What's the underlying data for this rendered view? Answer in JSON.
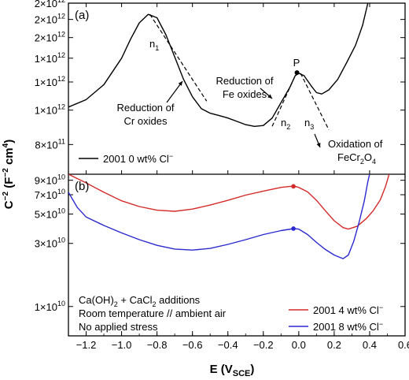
{
  "chart_data": [
    {
      "panel": "(a)",
      "type": "line",
      "xlabel": "E (V",
      "xlabel_sub": "SCE",
      "xlabel_close": ")",
      "ylabel_parts": [
        "C",
        "−2",
        " (F",
        "−2",
        " cm",
        "4",
        ")"
      ],
      "x_ticks": [
        "−1.2",
        "−1.0",
        "−0.8",
        "−0.6",
        "−0.4",
        "−0.2",
        "0.0",
        "0.2",
        "0.4",
        "0.6"
      ],
      "xlim": [
        -1.3,
        0.6
      ],
      "y_scale": "log",
      "ylim": [
        660000000000.0,
        2000000000000.0
      ],
      "y_ticks": [
        {
          "value": 800000000000.0,
          "mant": "8×10",
          "exp": "11"
        },
        {
          "value": 1000000000000.0,
          "mant": "1×10",
          "exp": "12"
        },
        {
          "value": 1200000000000.0,
          "mant": "1×10",
          "exp": "12"
        },
        {
          "value": 1400000000000.0,
          "mant": "1×10",
          "exp": "12"
        },
        {
          "value": 1600000000000.0,
          "mant": "2×10",
          "exp": "12"
        },
        {
          "value": 1800000000000.0,
          "mant": "2×10",
          "exp": "12"
        },
        {
          "value": 2000000000000.0,
          "mant": "2×10",
          "exp": "12"
        }
      ],
      "series": [
        {
          "name": "2001 0 wt% Cl",
          "name_sup": "−",
          "color": "#000000",
          "points": [
            [
              -1.3,
              1020000000000.0
            ],
            [
              -1.2,
              1070000000000.0
            ],
            [
              -1.1,
              1180000000000.0
            ],
            [
              -1.0,
              1400000000000.0
            ],
            [
              -0.95,
              1580000000000.0
            ],
            [
              -0.9,
              1760000000000.0
            ],
            [
              -0.85,
              1860000000000.0
            ],
            [
              -0.8,
              1820000000000.0
            ],
            [
              -0.75,
              1630000000000.0
            ],
            [
              -0.7,
              1410000000000.0
            ],
            [
              -0.65,
              1220000000000.0
            ],
            [
              -0.6,
              1090000000000.0
            ],
            [
              -0.55,
              1010000000000.0
            ],
            [
              -0.5,
              980000000000.0
            ],
            [
              -0.45,
              965000000000.0
            ],
            [
              -0.4,
              950000000000.0
            ],
            [
              -0.35,
              930000000000.0
            ],
            [
              -0.3,
              910000000000.0
            ],
            [
              -0.25,
              900000000000.0
            ],
            [
              -0.2,
              905000000000.0
            ],
            [
              -0.15,
              950000000000.0
            ],
            [
              -0.1,
              1050000000000.0
            ],
            [
              -0.05,
              1160000000000.0
            ],
            [
              -0.02,
              1250000000000.0
            ],
            [
              0.0,
              1270000000000.0
            ],
            [
              0.03,
              1250000000000.0
            ],
            [
              0.07,
              1170000000000.0
            ],
            [
              0.1,
              1120000000000.0
            ],
            [
              0.13,
              1110000000000.0
            ],
            [
              0.17,
              1140000000000.0
            ],
            [
              0.22,
              1220000000000.0
            ],
            [
              0.27,
              1360000000000.0
            ],
            [
              0.32,
              1520000000000.0
            ],
            [
              0.36,
              1730000000000.0
            ],
            [
              0.39,
              2000000000000.0
            ]
          ]
        }
      ],
      "tangents": [
        {
          "label": "n",
          "sub": "1",
          "x1": -0.84,
          "y1": 1860000000000.0,
          "x2": -0.52,
          "y2": 1060000000000.0
        },
        {
          "label": "n",
          "sub": "2",
          "x1": -0.15,
          "y1": 900000000000.0,
          "x2": -0.02,
          "y2": 1250000000000.0
        },
        {
          "label": "n",
          "sub": "3",
          "x1": 0.01,
          "y1": 1270000000000.0,
          "x2": 0.17,
          "y2": 880000000000.0
        }
      ],
      "marker": {
        "label": "P",
        "x": -0.01,
        "y": 1275000000000.0
      },
      "annotations": [
        {
          "lines": [
            "Reduction of",
            "Cr oxides"
          ]
        },
        {
          "lines": [
            "Reduction of",
            "Fe oxides"
          ]
        },
        {
          "lines": [
            "Oxidation of"
          ],
          "formula": [
            "FeCr",
            "2",
            "O",
            "4"
          ]
        }
      ]
    },
    {
      "panel": "(b)",
      "type": "line",
      "y_scale": "log",
      "ylim": [
        6000000000.0,
        100000000000.0
      ],
      "y_ticks": [
        {
          "value": 10000000000.0,
          "mant": "1×10",
          "exp": "10"
        },
        {
          "value": 30000000000.0,
          "mant": "3×10",
          "exp": "10"
        },
        {
          "value": 50000000000.0,
          "mant": "5×10",
          "exp": "10"
        },
        {
          "value": 70000000000.0,
          "mant": "7×10",
          "exp": "10"
        },
        {
          "value": 90000000000.0,
          "mant": "9×10",
          "exp": "10"
        }
      ],
      "series": [
        {
          "name": "2001 4 wt% Cl",
          "name_sup": "−",
          "color": "#d42a2a",
          "points": [
            [
              -1.3,
              100000000000.0
            ],
            [
              -1.2,
              86000000000.0
            ],
            [
              -1.1,
              73000000000.0
            ],
            [
              -1.0,
              63000000000.0
            ],
            [
              -0.9,
              57000000000.0
            ],
            [
              -0.8,
              53500000000.0
            ],
            [
              -0.7,
              52500000000.0
            ],
            [
              -0.6,
              54500000000.0
            ],
            [
              -0.5,
              58500000000.0
            ],
            [
              -0.4,
              63500000000.0
            ],
            [
              -0.3,
              69500000000.0
            ],
            [
              -0.2,
              74500000000.0
            ],
            [
              -0.1,
              79500000000.0
            ],
            [
              -0.05,
              81000000000.0
            ],
            [
              -0.02,
              81000000000.0
            ],
            [
              0.0,
              79500000000.0
            ],
            [
              0.05,
              73500000000.0
            ],
            [
              0.1,
              63500000000.0
            ],
            [
              0.15,
              53000000000.0
            ],
            [
              0.2,
              44500000000.0
            ],
            [
              0.25,
              39500000000.0
            ],
            [
              0.28,
              38500000000.0
            ],
            [
              0.33,
              40500000000.0
            ],
            [
              0.38,
              46000000000.0
            ],
            [
              0.42,
              53000000000.0
            ],
            [
              0.46,
              64000000000.0
            ],
            [
              0.49,
              81000000000.0
            ],
            [
              0.51,
              100000000000.0
            ]
          ]
        },
        {
          "name": "2001 8 wt% Cl",
          "name_sup": "−",
          "color": "#2a2ad0",
          "points": [
            [
              -1.3,
              73000000000.0
            ],
            [
              -1.25,
              56000000000.0
            ],
            [
              -1.2,
              47500000000.0
            ],
            [
              -1.1,
              41000000000.0
            ],
            [
              -1.0,
              36000000000.0
            ],
            [
              -0.9,
              32000000000.0
            ],
            [
              -0.8,
              29000000000.0
            ],
            [
              -0.7,
              27200000000.0
            ],
            [
              -0.6,
              26700000000.0
            ],
            [
              -0.5,
              27500000000.0
            ],
            [
              -0.4,
              29500000000.0
            ],
            [
              -0.3,
              32000000000.0
            ],
            [
              -0.2,
              35000000000.0
            ],
            [
              -0.1,
              37500000000.0
            ],
            [
              -0.03,
              38800000000.0
            ],
            [
              0.0,
              38500000000.0
            ],
            [
              0.05,
              35000000000.0
            ],
            [
              0.1,
              30500000000.0
            ],
            [
              0.15,
              27000000000.0
            ],
            [
              0.2,
              24500000000.0
            ],
            [
              0.25,
              23000000000.0
            ],
            [
              0.28,
              24500000000.0
            ],
            [
              0.31,
              31000000000.0
            ],
            [
              0.34,
              43000000000.0
            ],
            [
              0.37,
              63000000000.0
            ],
            [
              0.39,
              88000000000.0
            ],
            [
              0.4,
              100000000000.0
            ]
          ]
        }
      ],
      "markers": [
        {
          "x": -0.03,
          "y": 81000000000.0,
          "color": "#d42a2a"
        },
        {
          "x": -0.03,
          "y": 38800000000.0,
          "color": "#2a2ad0"
        }
      ],
      "notes": [
        {
          "parts": [
            "Ca(OH)",
            "2",
            " + CaCl",
            "2",
            " additions"
          ]
        },
        {
          "parts": [
            "Room temperature // ambient air"
          ]
        },
        {
          "parts": [
            "No applied stress"
          ]
        }
      ]
    }
  ]
}
